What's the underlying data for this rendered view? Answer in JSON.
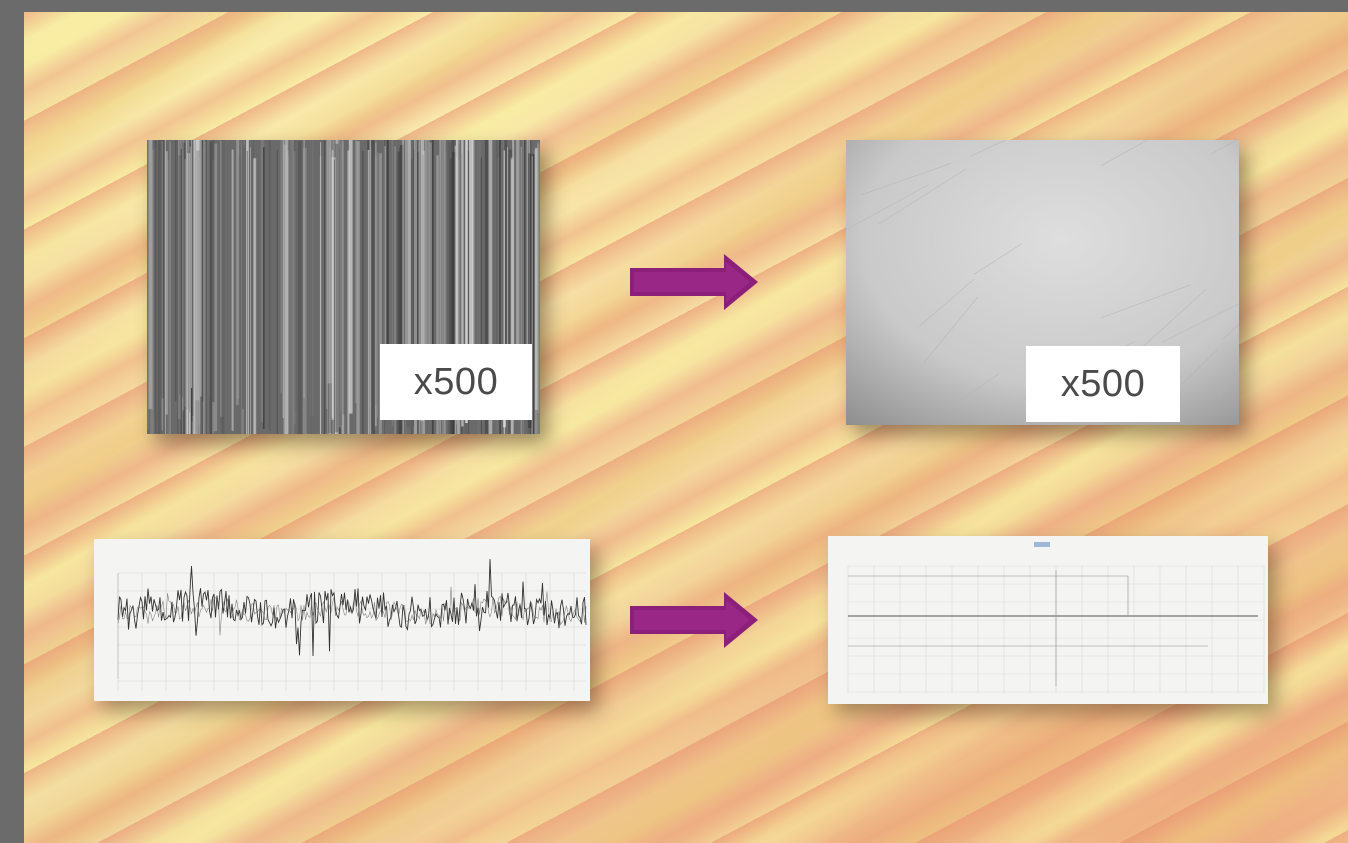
{
  "panels": {
    "before_image": {
      "magnification": "x500",
      "icon": "rough-surface-micrograph"
    },
    "after_image": {
      "magnification": "x500",
      "icon": "smooth-surface-micrograph"
    },
    "before_profile": {
      "icon": "rough-surface-profile-graph"
    },
    "after_profile": {
      "icon": "smooth-surface-profile-graph"
    }
  },
  "arrows": [
    {
      "icon": "arrow-right-icon",
      "color": "#8b1f7a"
    },
    {
      "icon": "arrow-right-icon",
      "color": "#8b1f7a"
    }
  ],
  "colors": {
    "arrow": "#8b1f7a",
    "label_background": "#ffffff",
    "frame": "#6b6b6b"
  }
}
